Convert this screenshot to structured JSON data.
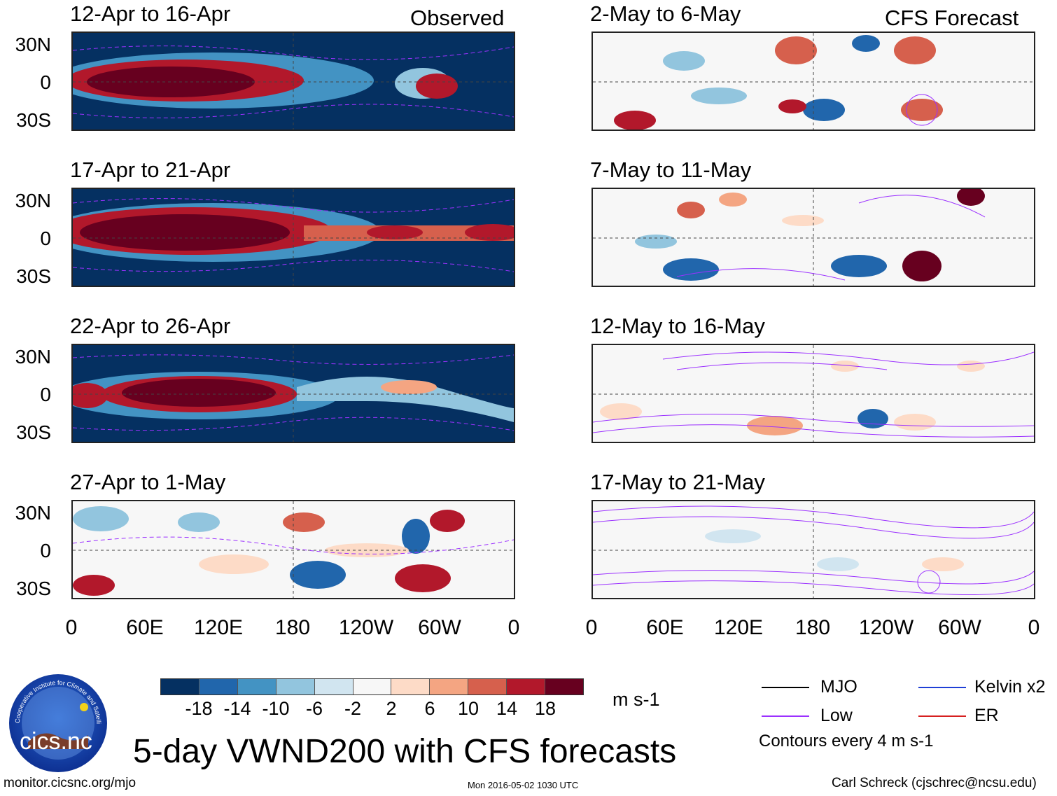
{
  "observed_label": "Observed",
  "forecast_label": "CFS Forecast",
  "observed_panels": [
    {
      "title": "12-Apr to 16-Apr"
    },
    {
      "title": "17-Apr to 21-Apr"
    },
    {
      "title": "22-Apr to 26-Apr"
    },
    {
      "title": "27-Apr to 1-May"
    }
  ],
  "forecast_panels": [
    {
      "title": "2-May to 6-May"
    },
    {
      "title": "7-May to 11-May"
    },
    {
      "title": "12-May to 16-May"
    },
    {
      "title": "17-May to 21-May"
    }
  ],
  "lat_labels": [
    "30N",
    "0",
    "30S"
  ],
  "lon_labels": [
    "0",
    "60E",
    "120E",
    "180",
    "120W",
    "60W",
    "0"
  ],
  "colorbar": {
    "ticks": [
      "-18",
      "-14",
      "-10",
      "-6",
      "-2",
      "2",
      "6",
      "10",
      "14",
      "18"
    ],
    "colors": [
      "#053061",
      "#2166ac",
      "#4393c3",
      "#92c5de",
      "#d1e5f0",
      "#f7f7f7",
      "#fddbc7",
      "#f4a582",
      "#d6604d",
      "#b2182b",
      "#67001f"
    ],
    "unit": "m s-1"
  },
  "legend": {
    "items": [
      {
        "label": "MJO",
        "color": "#000000"
      },
      {
        "label": "Kelvin x2",
        "color": "#1f3fd6"
      },
      {
        "label": "Low",
        "color": "#9b30ff"
      },
      {
        "label": "ER",
        "color": "#d62020"
      }
    ],
    "note": "Contours every 4 m s-1"
  },
  "main_title": "5-day VWND200 with CFS forecasts",
  "logo_text": "cics.nc",
  "logo_ring_text": "Cooperative Institute for Climate and Satellites",
  "footer": {
    "url": "monitor.cicsnc.org/mjo",
    "timestamp": "Mon 2016-05-02 1030 UTC",
    "author": "Carl Schreck (cjschrec@ncsu.edu)"
  }
}
